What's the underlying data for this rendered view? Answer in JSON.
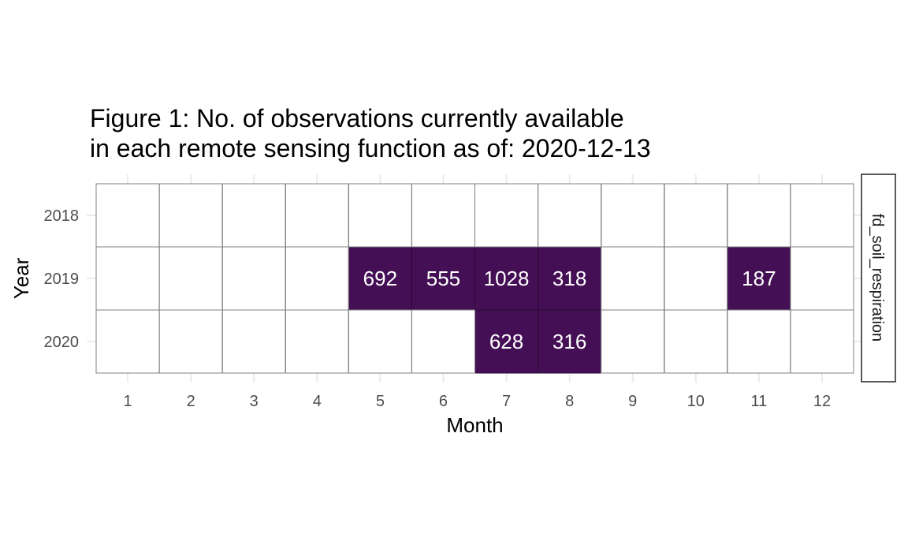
{
  "chart_data": {
    "type": "heatmap",
    "title_lines": [
      "Figure 1: No. of observations currently available",
      "in each remote sensing function as of: 2020-12-13"
    ],
    "xlabel": "Month",
    "ylabel": "Year",
    "facet_label": "fd_soil_respiration",
    "x_categories": [
      "1",
      "2",
      "3",
      "4",
      "5",
      "6",
      "7",
      "8",
      "9",
      "10",
      "11",
      "12"
    ],
    "y_categories": [
      "2018",
      "2019",
      "2020"
    ],
    "cells": [
      {
        "year": "2019",
        "month": "5",
        "value": 692
      },
      {
        "year": "2019",
        "month": "6",
        "value": 555
      },
      {
        "year": "2019",
        "month": "7",
        "value": 1028
      },
      {
        "year": "2019",
        "month": "8",
        "value": 318
      },
      {
        "year": "2019",
        "month": "11",
        "value": 187
      },
      {
        "year": "2020",
        "month": "7",
        "value": 628
      },
      {
        "year": "2020",
        "month": "8",
        "value": 316
      }
    ],
    "fill_color": "#440f55",
    "empty_color": "#ffffff",
    "grid_color": "#ebebeb",
    "border_color": "#808080"
  }
}
